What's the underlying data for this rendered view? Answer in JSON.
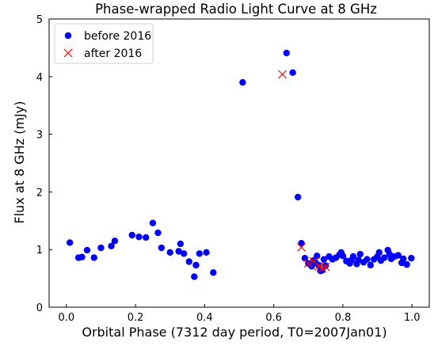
{
  "chart_data": {
    "type": "scatter",
    "title": "Phase-wrapped Radio Light Curve at 8 GHz",
    "xlabel": "Orbital Phase (7312 day period, T0=2007Jan01)",
    "ylabel": "Flux at 8 GHz (mJy)",
    "xlim": [
      -0.05,
      1.05
    ],
    "ylim": [
      0,
      5
    ],
    "xticks": [
      "0.0",
      "0.2",
      "0.4",
      "0.6",
      "0.8",
      "1.0"
    ],
    "yticks": [
      "0",
      "1",
      "2",
      "3",
      "4",
      "5"
    ],
    "grid": false,
    "legend_position": "top-left",
    "series": [
      {
        "name": "before 2016",
        "marker": "circle",
        "color": "#0000ff",
        "points": [
          [
            0.01,
            1.12
          ],
          [
            0.035,
            0.86
          ],
          [
            0.045,
            0.87
          ],
          [
            0.06,
            0.99
          ],
          [
            0.08,
            0.86
          ],
          [
            0.1,
            1.03
          ],
          [
            0.13,
            1.06
          ],
          [
            0.14,
            1.15
          ],
          [
            0.19,
            1.25
          ],
          [
            0.21,
            1.22
          ],
          [
            0.23,
            1.21
          ],
          [
            0.25,
            1.46
          ],
          [
            0.265,
            1.29
          ],
          [
            0.275,
            1.03
          ],
          [
            0.3,
            0.95
          ],
          [
            0.325,
            0.97
          ],
          [
            0.33,
            1.1
          ],
          [
            0.34,
            0.93
          ],
          [
            0.355,
            0.79
          ],
          [
            0.37,
            0.53
          ],
          [
            0.375,
            0.73
          ],
          [
            0.385,
            0.93
          ],
          [
            0.405,
            0.95
          ],
          [
            0.425,
            0.6
          ],
          [
            0.51,
            3.9
          ],
          [
            0.637,
            4.41
          ],
          [
            0.655,
            4.07
          ],
          [
            0.67,
            1.91
          ],
          [
            0.68,
            1.11
          ],
          [
            0.69,
            0.85
          ],
          [
            0.7,
            0.76
          ],
          [
            0.71,
            0.71
          ],
          [
            0.715,
            0.81
          ],
          [
            0.72,
            0.78
          ],
          [
            0.725,
            0.89
          ],
          [
            0.73,
            0.73
          ],
          [
            0.735,
            0.63
          ],
          [
            0.74,
            0.64
          ],
          [
            0.745,
            0.83
          ],
          [
            0.75,
            0.72
          ],
          [
            0.76,
            0.88
          ],
          [
            0.77,
            0.83
          ],
          [
            0.78,
            0.86
          ],
          [
            0.79,
            0.91
          ],
          [
            0.795,
            0.95
          ],
          [
            0.8,
            0.89
          ],
          [
            0.81,
            0.8
          ],
          [
            0.82,
            0.76
          ],
          [
            0.825,
            0.82
          ],
          [
            0.83,
            0.88
          ],
          [
            0.84,
            0.75
          ],
          [
            0.845,
            0.82
          ],
          [
            0.85,
            0.92
          ],
          [
            0.86,
            0.78
          ],
          [
            0.87,
            0.83
          ],
          [
            0.88,
            0.73
          ],
          [
            0.89,
            0.83
          ],
          [
            0.9,
            0.88
          ],
          [
            0.905,
            0.95
          ],
          [
            0.91,
            0.81
          ],
          [
            0.92,
            0.86
          ],
          [
            0.93,
            0.99
          ],
          [
            0.935,
            0.92
          ],
          [
            0.94,
            0.84
          ],
          [
            0.95,
            0.88
          ],
          [
            0.96,
            0.9
          ],
          [
            0.97,
            0.77
          ],
          [
            0.975,
            0.84
          ],
          [
            0.985,
            0.74
          ],
          [
            0.998,
            0.85
          ]
        ]
      },
      {
        "name": "after 2016",
        "marker": "x",
        "color": "#ff0000",
        "points": [
          [
            0.625,
            4.04
          ],
          [
            0.68,
            1.04
          ],
          [
            0.7,
            0.76
          ],
          [
            0.715,
            0.8
          ],
          [
            0.73,
            0.71
          ],
          [
            0.74,
            0.67
          ],
          [
            0.75,
            0.7
          ]
        ]
      }
    ]
  }
}
